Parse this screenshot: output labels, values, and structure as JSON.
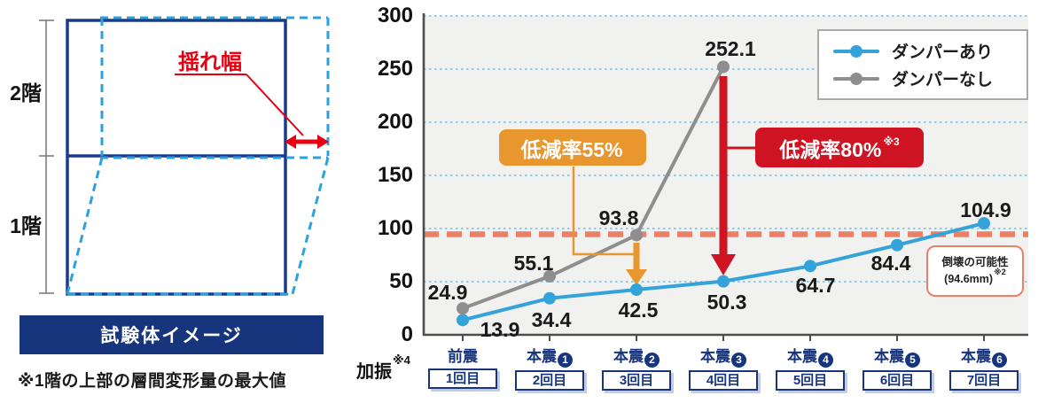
{
  "diagram": {
    "floor2_label": "2階",
    "floor1_label": "1階",
    "sway_label": "揺れ幅",
    "caption": "試験体イメージ",
    "note": "※1階の上部の層間変形量の最大値",
    "colors": {
      "frame_navy": "#1a3b8c",
      "deformed_blue": "#2ba2e0",
      "annotation_red": "#e60012",
      "banner_navy": "#17357d"
    }
  },
  "chart_data": {
    "type": "line",
    "title": "",
    "x_axis_label": "加振",
    "x_axis_note": "※4",
    "categories": [
      {
        "label": "前震",
        "num": "",
        "sub": "1回目"
      },
      {
        "label": "本震",
        "num": "1",
        "sub": "2回目"
      },
      {
        "label": "本震",
        "num": "2",
        "sub": "3回目"
      },
      {
        "label": "本震",
        "num": "3",
        "sub": "4回目"
      },
      {
        "label": "本震",
        "num": "4",
        "sub": "5回目"
      },
      {
        "label": "本震",
        "num": "5",
        "sub": "6回目"
      },
      {
        "label": "本震",
        "num": "6",
        "sub": "7回目"
      }
    ],
    "series": [
      {
        "name": "ダンパーあり",
        "color": "#33a3da",
        "values": [
          13.9,
          34.4,
          42.5,
          50.3,
          64.7,
          84.4,
          104.9
        ]
      },
      {
        "name": "ダンパーなし",
        "color": "#8e8e8e",
        "values": [
          24.9,
          55.1,
          93.8,
          252.1
        ]
      }
    ],
    "ylim": [
      0,
      300
    ],
    "yticks": [
      0,
      50,
      100,
      150,
      200,
      250,
      300
    ],
    "grid": true,
    "legend_position": "top-right",
    "threshold": {
      "value": 94.6,
      "color": "#ec8066",
      "label_line1": "倒壊の可能性",
      "label_line2": "(94.6mm)",
      "note": "※2"
    },
    "annotations": [
      {
        "text": "低減率55%",
        "note": "",
        "color": "#e8962e"
      },
      {
        "text": "低減率80%",
        "note": "※3",
        "color": "#ce1322"
      }
    ]
  }
}
